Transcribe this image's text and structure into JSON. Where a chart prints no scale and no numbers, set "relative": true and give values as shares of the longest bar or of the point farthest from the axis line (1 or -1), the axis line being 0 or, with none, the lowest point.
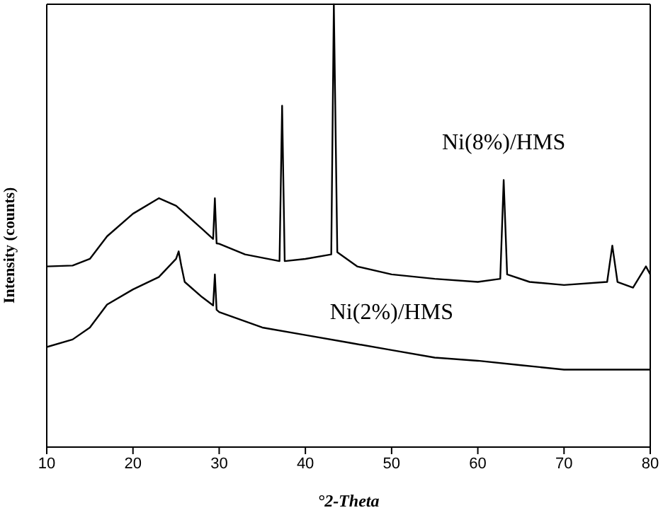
{
  "chart_data": {
    "type": "line",
    "xlabel": "°2-Theta",
    "ylabel": "Intensity (counts)",
    "relative": true,
    "xlim": [
      10,
      80
    ],
    "xticks": [
      10,
      20,
      30,
      40,
      50,
      60,
      70,
      80
    ],
    "marker": "none",
    "line_style": "solid",
    "series": [
      {
        "name": "Ni(8%)/HMS",
        "color": "#000000",
        "x": [
          10,
          13,
          15,
          17,
          20,
          23,
          25,
          28,
          29.3,
          29.5,
          29.7,
          30,
          33,
          37,
          37.3,
          37.6,
          40,
          43,
          43.3,
          43.7,
          46,
          50,
          55,
          60,
          62.6,
          63,
          63.4,
          66,
          70,
          75,
          75.6,
          76.2,
          78,
          79.5,
          80
        ],
        "values": [
          0.408,
          0.41,
          0.425,
          0.476,
          0.527,
          0.562,
          0.545,
          0.493,
          0.47,
          0.562,
          0.46,
          0.459,
          0.435,
          0.42,
          0.771,
          0.42,
          0.425,
          0.435,
          1.0,
          0.44,
          0.408,
          0.39,
          0.38,
          0.373,
          0.38,
          0.603,
          0.39,
          0.373,
          0.366,
          0.373,
          0.455,
          0.373,
          0.36,
          0.408,
          0.39
        ]
      },
      {
        "name": "Ni(2%)/HMS",
        "color": "#000000",
        "x": [
          10,
          13,
          15,
          17,
          20,
          23,
          25,
          25.3,
          25.6,
          26,
          28,
          29.3,
          29.5,
          29.7,
          30,
          35,
          40,
          45,
          50,
          55,
          60,
          65,
          70,
          75,
          80
        ],
        "values": [
          0.226,
          0.243,
          0.27,
          0.322,
          0.356,
          0.384,
          0.425,
          0.442,
          0.41,
          0.373,
          0.339,
          0.32,
          0.39,
          0.31,
          0.305,
          0.27,
          0.253,
          0.236,
          0.219,
          0.202,
          0.195,
          0.185,
          0.175,
          0.175,
          0.175
        ]
      }
    ]
  }
}
